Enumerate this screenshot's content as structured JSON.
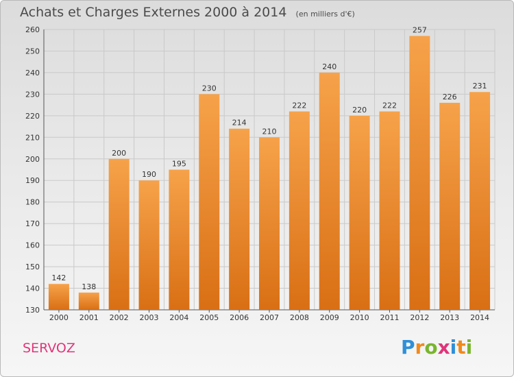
{
  "title": "Achats et Charges Externes 2000 à 2014",
  "subtitle": "(en milliers d'€)",
  "commune": "SERVOZ",
  "logo": {
    "text": "Proxiti",
    "letters": [
      "P",
      "r",
      "o",
      "x",
      "i",
      "t",
      "i"
    ],
    "colors": [
      "#2f8fd8",
      "#f08a1c",
      "#7ab52f",
      "#e0357a",
      "#2f8fd8",
      "#f08a1c",
      "#7ab52f"
    ]
  },
  "colors": {
    "bar_light": "#f6a24a",
    "bar_dark": "#d96f14",
    "grid": "#c9c9c9"
  },
  "chart_data": {
    "type": "bar",
    "categories": [
      "2000",
      "2001",
      "2002",
      "2003",
      "2004",
      "2005",
      "2006",
      "2007",
      "2008",
      "2009",
      "2010",
      "2011",
      "2012",
      "2013",
      "2014"
    ],
    "values": [
      142,
      138,
      200,
      190,
      195,
      230,
      214,
      210,
      222,
      240,
      220,
      222,
      257,
      226,
      231
    ],
    "title": "Achats et Charges Externes 2000 à 2014",
    "ylim": [
      130,
      260
    ],
    "yticks": [
      130,
      140,
      150,
      160,
      170,
      180,
      190,
      200,
      210,
      220,
      230,
      240,
      250,
      260
    ],
    "grid": true
  }
}
